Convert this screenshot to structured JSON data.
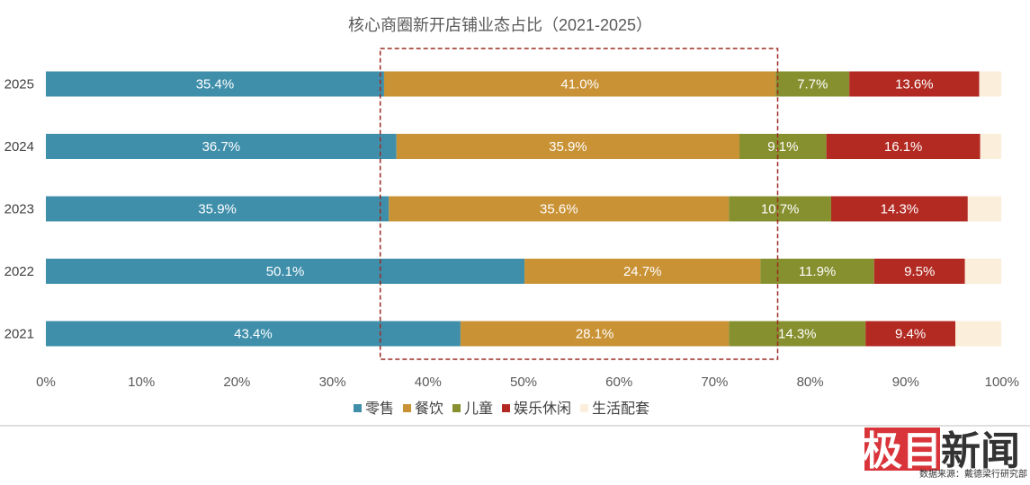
{
  "chart_data": {
    "type": "bar",
    "orientation": "horizontal",
    "stacked": true,
    "title": "核心商圈新开店铺业态占比（2021-2025）",
    "categories": [
      "2025",
      "2024",
      "2023",
      "2022",
      "2021"
    ],
    "x_ticks": [
      "0%",
      "10%",
      "20%",
      "30%",
      "40%",
      "50%",
      "60%",
      "70%",
      "80%",
      "90%",
      "100%"
    ],
    "xlim": [
      0,
      100
    ],
    "series": [
      {
        "name": "零售",
        "color": "#3f8fab",
        "values": [
          35.4,
          36.7,
          35.9,
          50.1,
          43.4
        ],
        "labels": [
          "35.4%",
          "36.7%",
          "35.9%",
          "50.1%",
          "43.4%"
        ]
      },
      {
        "name": "餐饮",
        "color": "#c99235",
        "values": [
          41.0,
          35.9,
          35.6,
          24.7,
          28.1
        ],
        "labels": [
          "41.0%",
          "35.9%",
          "35.6%",
          "24.7%",
          "28.1%"
        ]
      },
      {
        "name": "儿童",
        "color": "#86902f",
        "values": [
          7.7,
          9.1,
          10.7,
          11.9,
          14.3
        ],
        "labels": [
          "7.7%",
          "9.1%",
          "10.7%",
          "11.9%",
          "14.3%"
        ]
      },
      {
        "name": "娱乐休闲",
        "color": "#b22a22",
        "values": [
          13.6,
          16.1,
          14.3,
          9.5,
          9.4
        ],
        "labels": [
          "13.6%",
          "16.1%",
          "14.3%",
          "9.5%",
          "9.4%"
        ]
      },
      {
        "name": "生活配套",
        "color": "#fbeedb",
        "values": [
          2.3,
          2.2,
          3.5,
          3.8,
          4.8
        ],
        "labels": [
          "",
          "",
          "",
          "",
          ""
        ]
      }
    ],
    "highlight_box": {
      "x_range": [
        35,
        76.6
      ],
      "color": "#9b2b23",
      "style": "dashed"
    },
    "legend_position": "bottom"
  },
  "logo": {
    "text": "极目新闻",
    "box_chars": "极目",
    "plain_chars": "新闻",
    "box_color": "#d8343a"
  },
  "source": "数据来源：戴德梁行研究部"
}
